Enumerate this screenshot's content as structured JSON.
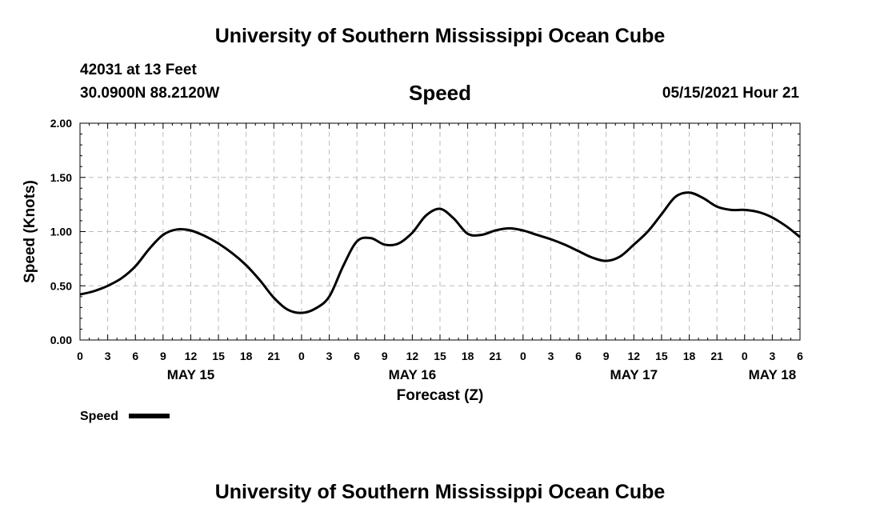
{
  "header": {
    "title": "University of Southern Mississippi Ocean Cube",
    "station": "42031 at 13 Feet",
    "location": "30.0900N  88.2120W",
    "variable": "Speed",
    "timestamp": "05/15/2021 Hour 21"
  },
  "footer": {
    "title": "University of Southern Mississippi Ocean Cube"
  },
  "legend": {
    "label": "Speed"
  },
  "colors": {
    "line": "#000000",
    "grid": "#bbbbbb",
    "axis": "#000000"
  },
  "chart_data": {
    "type": "line",
    "title": "Speed",
    "xlabel": "Forecast (Z)",
    "ylabel": "Speed (Knots)",
    "xlim": [
      0,
      78
    ],
    "ylim": [
      0,
      2
    ],
    "x_unit": "hours since MAY 15 00Z",
    "yticks": [
      0,
      0.5,
      1.0,
      1.5,
      2.0
    ],
    "ytick_labels": [
      "0.00",
      "0.50",
      "1.00",
      "1.50",
      "2.00"
    ],
    "xticks": [
      0,
      3,
      6,
      9,
      12,
      15,
      18,
      21,
      24,
      27,
      30,
      33,
      36,
      39,
      42,
      45,
      48,
      51,
      54,
      57,
      60,
      63,
      66,
      69,
      72,
      75,
      78
    ],
    "xtick_labels": [
      "0",
      "3",
      "6",
      "9",
      "12",
      "15",
      "18",
      "21",
      "0",
      "3",
      "6",
      "9",
      "12",
      "15",
      "18",
      "21",
      "0",
      "3",
      "6",
      "9",
      "12",
      "15",
      "18",
      "21",
      "0",
      "3",
      "6"
    ],
    "date_labels": [
      {
        "x": 12,
        "label": "MAY 15"
      },
      {
        "x": 36,
        "label": "MAY 16"
      },
      {
        "x": 60,
        "label": "MAY 17"
      },
      {
        "x": 75,
        "label": "MAY 18"
      }
    ],
    "grid": true,
    "legend_position": "bottom-left",
    "series": [
      {
        "name": "Speed",
        "x": [
          0,
          1.5,
          3,
          4.5,
          6,
          7.5,
          9,
          10.5,
          12,
          13.5,
          15,
          16.5,
          18,
          19.5,
          21,
          22.5,
          24,
          25.5,
          27,
          28.5,
          30,
          31.5,
          33,
          34.5,
          36,
          37.5,
          39,
          40.5,
          42,
          43.5,
          45,
          46.5,
          48,
          49.5,
          51,
          52.5,
          54,
          55.5,
          57,
          58.5,
          60,
          61.5,
          63,
          64.5,
          66,
          67.5,
          69,
          70.5,
          72,
          73.5,
          75,
          76.5,
          78
        ],
        "values": [
          0.42,
          0.45,
          0.5,
          0.57,
          0.68,
          0.84,
          0.97,
          1.02,
          1.01,
          0.96,
          0.89,
          0.8,
          0.69,
          0.55,
          0.39,
          0.28,
          0.25,
          0.29,
          0.4,
          0.68,
          0.91,
          0.94,
          0.88,
          0.89,
          0.99,
          1.15,
          1.21,
          1.12,
          0.98,
          0.97,
          1.01,
          1.03,
          1.01,
          0.97,
          0.93,
          0.88,
          0.82,
          0.76,
          0.73,
          0.77,
          0.88,
          1.0,
          1.16,
          1.32,
          1.36,
          1.31,
          1.23,
          1.2,
          1.2,
          1.18,
          1.13,
          1.05,
          0.95
        ]
      }
    ]
  }
}
